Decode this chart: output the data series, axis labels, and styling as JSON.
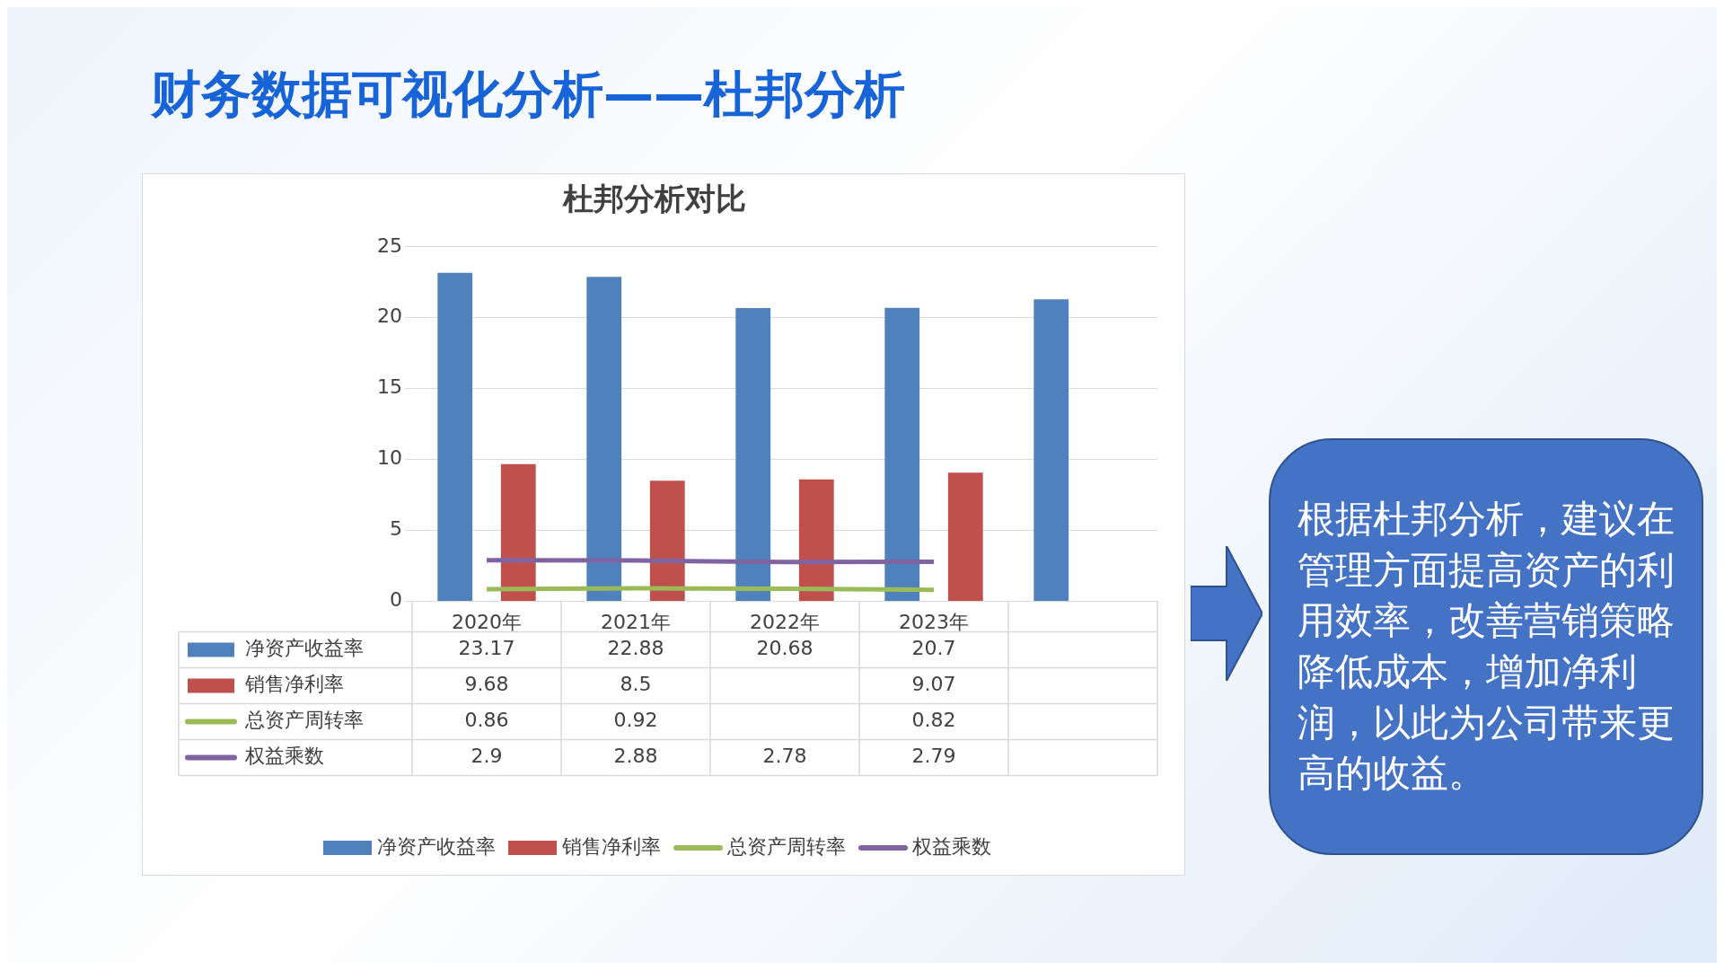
{
  "chart_data": {
    "type": "bar",
    "title": "杜邦分析对比",
    "categories": [
      "2020年",
      "2021年",
      "2022年",
      "2023年",
      null
    ],
    "series": [
      {
        "name": "净资产收益率",
        "color": "#4f81bd",
        "values": [
          23.17,
          22.88,
          20.68,
          20.7,
          21.3
        ],
        "value_labels": [
          "23.17",
          "22.88",
          "20.68",
          "20.7",
          null
        ]
      },
      {
        "name": "销售净利率",
        "color": "#c0504d",
        "values": [
          9.68,
          8.5,
          8.6,
          9.07,
          null
        ],
        "value_labels": [
          "9.68",
          "8.5",
          null,
          "9.07",
          null
        ]
      },
      {
        "name": "总资产周转率",
        "type": "line",
        "color": "#9bbb59",
        "values": [
          0.86,
          0.92,
          0.9,
          0.82,
          null
        ],
        "value_labels": [
          "0.86",
          "0.92",
          null,
          "0.82",
          null
        ]
      },
      {
        "name": "权益乘数",
        "type": "line",
        "color": "#8064a2",
        "values": [
          2.9,
          2.88,
          2.78,
          2.79,
          null
        ],
        "value_labels": [
          "2.9",
          "2.88",
          "2.78",
          "2.79",
          null
        ]
      }
    ],
    "ylim": [
      0,
      25
    ],
    "yticks": [
      0,
      5,
      10,
      15,
      20,
      25
    ],
    "grid": "y",
    "legend": "bottom",
    "marker": "none",
    "annotations": [
      "财务数据可视化分析——杜邦分析",
      "根据杜邦分析，建议在管理方面提高资产的利用效率，改善营销策略降低成本，增加净利润，以此为公司带来更高的收益。"
    ]
  }
}
